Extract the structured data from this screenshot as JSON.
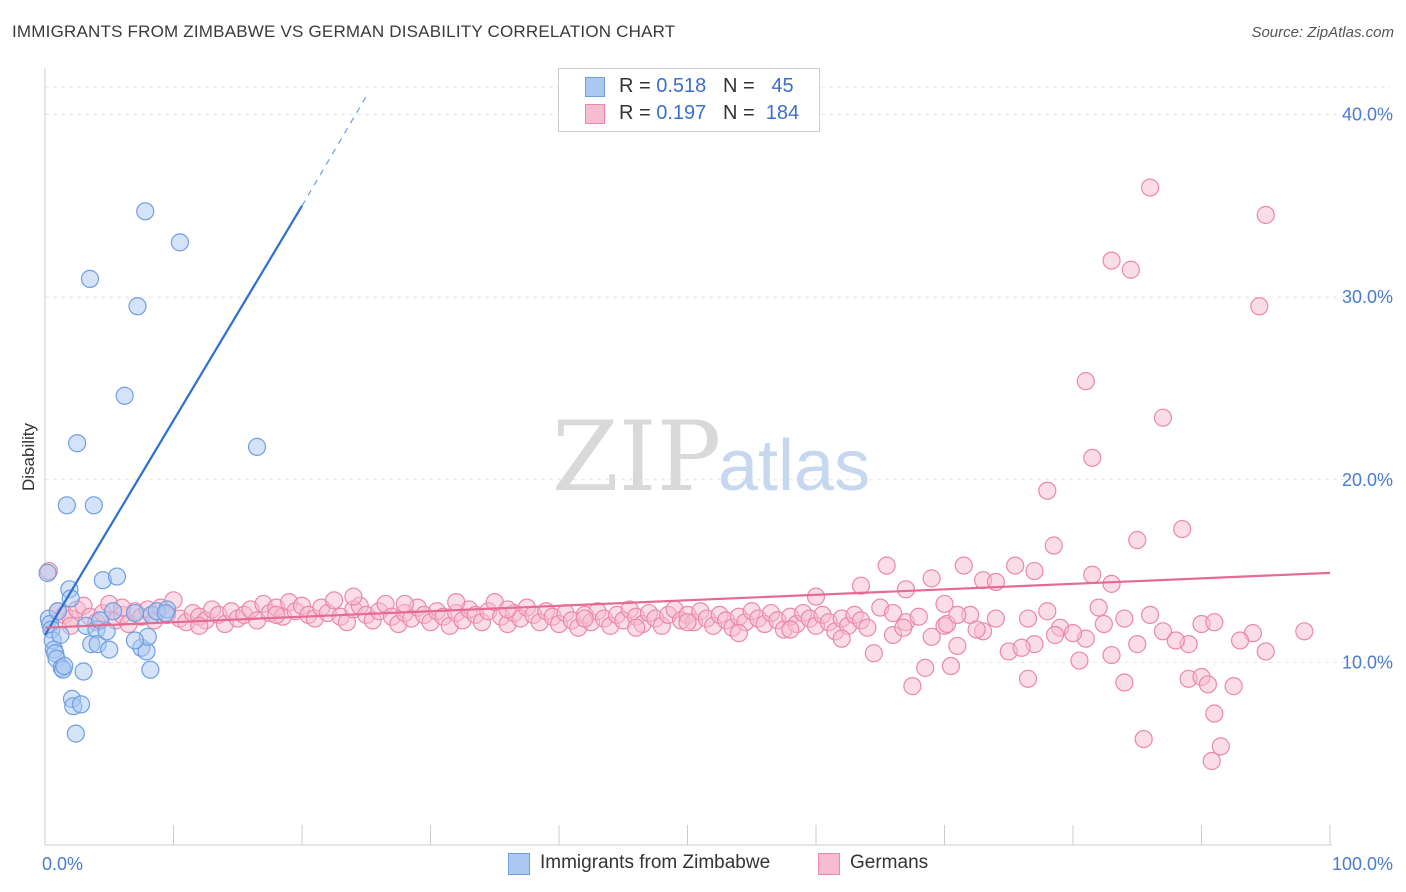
{
  "title": "IMMIGRANTS FROM ZIMBABWE VS GERMAN DISABILITY CORRELATION CHART",
  "source": "Source: ZipAtlas.com",
  "watermark": {
    "part1": "ZIP",
    "part2": "atlas"
  },
  "legend": {
    "rows": [
      {
        "r_label": "R =",
        "r_value": "0.518",
        "n_label": "N =",
        "n_value": "45"
      },
      {
        "r_label": "R =",
        "r_value": "0.197",
        "n_label": "N =",
        "n_value": "184"
      }
    ],
    "bottom": [
      "Immigrants from Zimbabwe",
      "Germans"
    ]
  },
  "colors": {
    "blue_fill": "#aac8f2",
    "blue_stroke": "#6f9fe0",
    "blue_line": "#2f6fd0",
    "pink_fill": "#f6bcd0",
    "pink_stroke": "#ec88a8",
    "pink_line": "#e56a94",
    "grid": "#e6e6e6",
    "tick_text": "#4a7bd0"
  },
  "chart_data": {
    "type": "scatter",
    "title": "IMMIGRANTS FROM ZIMBABWE VS GERMAN DISABILITY CORRELATION CHART",
    "xlabel": "",
    "ylabel": "Disability",
    "xlim": [
      0,
      100
    ],
    "ylim": [
      0,
      42
    ],
    "x_tick_labels": [
      "0.0%",
      "100.0%"
    ],
    "y_ticks": [
      10,
      20,
      30,
      40
    ],
    "y_tick_labels": [
      "10.0%",
      "20.0%",
      "30.0%",
      "40.0%"
    ],
    "grid": true,
    "legend_position": "top-center",
    "series": [
      {
        "name": "Immigrants from Zimbabwe",
        "R": 0.518,
        "N": 45,
        "trend": {
          "x0": 0,
          "y0": 11.5,
          "x1": 20,
          "y1": 35.0,
          "dashed_to_x": 25,
          "dashed_to_y": 41.0
        },
        "points": [
          [
            0.2,
            14.9
          ],
          [
            0.3,
            12.4
          ],
          [
            0.4,
            12.1
          ],
          [
            0.5,
            11.8
          ],
          [
            0.6,
            11.2
          ],
          [
            0.7,
            10.7
          ],
          [
            0.8,
            10.5
          ],
          [
            0.9,
            10.2
          ],
          [
            1.0,
            12.8
          ],
          [
            1.2,
            11.5
          ],
          [
            1.3,
            9.7
          ],
          [
            1.4,
            9.6
          ],
          [
            1.5,
            9.8
          ],
          [
            1.7,
            18.6
          ],
          [
            1.9,
            14.0
          ],
          [
            2.0,
            13.5
          ],
          [
            2.1,
            8.0
          ],
          [
            2.2,
            7.6
          ],
          [
            2.4,
            6.1
          ],
          [
            2.5,
            22.0
          ],
          [
            2.8,
            7.7
          ],
          [
            3.0,
            9.5
          ],
          [
            3.2,
            12.0
          ],
          [
            3.5,
            31.0
          ],
          [
            3.6,
            11.0
          ],
          [
            3.8,
            18.6
          ],
          [
            4.0,
            11.8
          ],
          [
            4.1,
            11.0
          ],
          [
            4.3,
            12.3
          ],
          [
            4.5,
            14.5
          ],
          [
            4.8,
            11.7
          ],
          [
            5.0,
            10.7
          ],
          [
            5.3,
            12.8
          ],
          [
            5.6,
            14.7
          ],
          [
            6.2,
            24.6
          ],
          [
            7.2,
            29.5
          ],
          [
            7.5,
            10.8
          ],
          [
            7.9,
            10.6
          ],
          [
            8.0,
            11.4
          ],
          [
            8.3,
            12.6
          ],
          [
            8.7,
            12.8
          ],
          [
            9.5,
            12.9
          ],
          [
            7.0,
            12.7
          ],
          [
            7.0,
            11.2
          ],
          [
            8.2,
            9.6
          ]
        ],
        "extra_points": [
          [
            7.8,
            34.7
          ],
          [
            10.5,
            33.0
          ],
          [
            16.5,
            21.8
          ],
          [
            9.4,
            12.7
          ]
        ]
      },
      {
        "name": "Germans",
        "R": 0.197,
        "N": 184,
        "trend": {
          "x0": 0,
          "y0": 11.9,
          "x1": 100,
          "y1": 14.9
        },
        "points": [
          [
            0.3,
            15.0
          ],
          [
            1.0,
            12.8
          ],
          [
            1.5,
            12.6
          ],
          [
            2.0,
            12.4
          ],
          [
            2.5,
            12.9
          ],
          [
            3.0,
            13.1
          ],
          [
            3.5,
            12.5
          ],
          [
            4.0,
            12.2
          ],
          [
            4.5,
            12.7
          ],
          [
            5.0,
            13.2
          ],
          [
            5.5,
            12.3
          ],
          [
            6.0,
            12.6
          ],
          [
            6.5,
            12.1
          ],
          [
            7.0,
            12.8
          ],
          [
            7.5,
            12.5
          ],
          [
            8.0,
            12.9
          ],
          [
            8.5,
            12.3
          ],
          [
            9.0,
            13.0
          ],
          [
            9.5,
            12.6
          ],
          [
            10.0,
            13.4
          ],
          [
            10.5,
            12.4
          ],
          [
            11.0,
            12.2
          ],
          [
            11.5,
            12.7
          ],
          [
            12.0,
            12.5
          ],
          [
            12.5,
            12.3
          ],
          [
            13.0,
            12.9
          ],
          [
            13.5,
            12.6
          ],
          [
            14.0,
            12.1
          ],
          [
            14.5,
            12.8
          ],
          [
            15.0,
            12.4
          ],
          [
            15.5,
            12.6
          ],
          [
            16.0,
            12.9
          ],
          [
            16.5,
            12.3
          ],
          [
            17.0,
            13.2
          ],
          [
            17.5,
            12.7
          ],
          [
            18.0,
            13.0
          ],
          [
            18.5,
            12.5
          ],
          [
            19.0,
            13.3
          ],
          [
            19.5,
            12.8
          ],
          [
            20.0,
            13.1
          ],
          [
            20.5,
            12.6
          ],
          [
            21.0,
            12.4
          ],
          [
            21.5,
            13.0
          ],
          [
            22.0,
            12.7
          ],
          [
            22.5,
            13.4
          ],
          [
            23.0,
            12.5
          ],
          [
            23.5,
            12.2
          ],
          [
            24.0,
            12.9
          ],
          [
            24.5,
            13.1
          ],
          [
            25.0,
            12.6
          ],
          [
            25.5,
            12.3
          ],
          [
            26.0,
            12.8
          ],
          [
            26.5,
            13.2
          ],
          [
            27.0,
            12.5
          ],
          [
            27.5,
            12.1
          ],
          [
            28.0,
            12.7
          ],
          [
            28.5,
            12.4
          ],
          [
            29.0,
            13.0
          ],
          [
            29.5,
            12.6
          ],
          [
            30.0,
            12.2
          ],
          [
            30.5,
            12.8
          ],
          [
            31.0,
            12.5
          ],
          [
            31.5,
            12.0
          ],
          [
            32.0,
            12.7
          ],
          [
            32.5,
            12.3
          ],
          [
            33.0,
            12.9
          ],
          [
            33.5,
            12.6
          ],
          [
            34.0,
            12.2
          ],
          [
            34.5,
            12.8
          ],
          [
            35.0,
            13.3
          ],
          [
            35.5,
            12.5
          ],
          [
            36.0,
            12.1
          ],
          [
            36.5,
            12.7
          ],
          [
            37.0,
            12.4
          ],
          [
            37.5,
            13.0
          ],
          [
            38.0,
            12.6
          ],
          [
            38.5,
            12.2
          ],
          [
            39.0,
            12.8
          ],
          [
            39.5,
            12.5
          ],
          [
            40.0,
            12.1
          ],
          [
            40.5,
            12.7
          ],
          [
            41.0,
            12.3
          ],
          [
            41.5,
            11.9
          ],
          [
            42.0,
            12.6
          ],
          [
            42.5,
            12.2
          ],
          [
            43.0,
            12.8
          ],
          [
            43.5,
            12.4
          ],
          [
            44.0,
            12.0
          ],
          [
            44.5,
            12.6
          ],
          [
            45.0,
            12.3
          ],
          [
            45.5,
            12.9
          ],
          [
            46.0,
            12.5
          ],
          [
            46.5,
            12.1
          ],
          [
            47.0,
            12.7
          ],
          [
            47.5,
            12.4
          ],
          [
            48.0,
            12.0
          ],
          [
            48.5,
            12.6
          ],
          [
            49.0,
            12.9
          ],
          [
            49.5,
            12.3
          ],
          [
            50.0,
            12.6
          ],
          [
            50.5,
            12.2
          ],
          [
            51.0,
            12.8
          ],
          [
            51.5,
            12.4
          ],
          [
            52.0,
            12.0
          ],
          [
            52.5,
            12.6
          ],
          [
            53.0,
            12.3
          ],
          [
            53.5,
            11.9
          ],
          [
            54.0,
            12.5
          ],
          [
            54.5,
            12.2
          ],
          [
            55.0,
            12.8
          ],
          [
            55.5,
            12.4
          ],
          [
            56.0,
            12.1
          ],
          [
            56.5,
            12.7
          ],
          [
            57.0,
            12.3
          ],
          [
            57.5,
            11.8
          ],
          [
            58.0,
            12.5
          ],
          [
            58.5,
            12.1
          ],
          [
            59.0,
            12.7
          ],
          [
            59.5,
            12.4
          ],
          [
            60.0,
            12.0
          ],
          [
            60.5,
            12.6
          ],
          [
            61.0,
            12.2
          ],
          [
            61.5,
            11.7
          ],
          [
            62.0,
            12.4
          ],
          [
            62.5,
            12.0
          ],
          [
            63.0,
            12.6
          ],
          [
            63.5,
            12.3
          ],
          [
            64.0,
            11.9
          ],
          [
            2.0,
            12.0
          ],
          [
            6.0,
            13.0
          ],
          [
            12.0,
            12.0
          ],
          [
            18.0,
            12.6
          ],
          [
            24.0,
            13.6
          ],
          [
            28.0,
            13.2
          ],
          [
            32.0,
            13.3
          ],
          [
            36.0,
            12.9
          ],
          [
            42.0,
            12.4
          ],
          [
            46.0,
            11.9
          ],
          [
            50.0,
            12.2
          ],
          [
            54.0,
            11.6
          ],
          [
            58.0,
            11.8
          ],
          [
            62.0,
            11.3
          ],
          [
            66.0,
            11.5
          ],
          [
            70.0,
            12.0
          ],
          [
            74.0,
            12.4
          ],
          [
            78.0,
            12.8
          ],
          [
            82.0,
            13.0
          ],
          [
            86.0,
            12.6
          ],
          [
            90.0,
            12.1
          ],
          [
            94.0,
            11.6
          ],
          [
            98.0,
            11.7
          ],
          [
            65.0,
            13.0
          ],
          [
            67.0,
            12.2
          ],
          [
            69.0,
            11.4
          ],
          [
            71.0,
            10.9
          ],
          [
            73.0,
            11.7
          ],
          [
            75.0,
            10.6
          ],
          [
            77.0,
            11.0
          ],
          [
            79.0,
            11.9
          ],
          [
            81.0,
            11.3
          ],
          [
            83.0,
            10.4
          ],
          [
            85.0,
            11.0
          ],
          [
            87.0,
            11.7
          ],
          [
            89.0,
            11.0
          ],
          [
            91.0,
            12.2
          ],
          [
            93.0,
            11.2
          ],
          [
            95.0,
            10.6
          ],
          [
            66.0,
            12.7
          ],
          [
            68.0,
            12.5
          ],
          [
            72.0,
            12.6
          ],
          [
            76.0,
            10.8
          ],
          [
            80.0,
            11.6
          ],
          [
            84.0,
            12.4
          ],
          [
            88.0,
            11.2
          ],
          [
            64.5,
            10.5
          ],
          [
            66.8,
            11.9
          ],
          [
            70.2,
            12.1
          ],
          [
            72.5,
            11.8
          ],
          [
            76.5,
            12.4
          ],
          [
            78.6,
            11.5
          ],
          [
            82.4,
            12.1
          ]
        ],
        "extra_points": [
          [
            86.0,
            36.0
          ],
          [
            95.0,
            34.5
          ],
          [
            83.0,
            32.0
          ],
          [
            84.5,
            31.5
          ],
          [
            94.5,
            29.5
          ],
          [
            81.0,
            25.4
          ],
          [
            87.0,
            23.4
          ],
          [
            81.5,
            21.2
          ],
          [
            78.0,
            19.4
          ],
          [
            88.5,
            17.3
          ],
          [
            85.0,
            16.7
          ],
          [
            78.5,
            16.4
          ],
          [
            71.5,
            15.3
          ],
          [
            75.5,
            15.3
          ],
          [
            77.0,
            15.0
          ],
          [
            81.5,
            14.8
          ],
          [
            69.0,
            14.6
          ],
          [
            73.0,
            14.5
          ],
          [
            74.0,
            14.4
          ],
          [
            83.0,
            14.3
          ],
          [
            65.5,
            15.3
          ],
          [
            67.0,
            14.0
          ],
          [
            63.5,
            14.2
          ],
          [
            60.0,
            13.6
          ],
          [
            70.0,
            13.2
          ],
          [
            71.0,
            12.6
          ],
          [
            68.5,
            9.7
          ],
          [
            70.5,
            9.8
          ],
          [
            67.5,
            8.7
          ],
          [
            76.5,
            9.1
          ],
          [
            80.5,
            10.1
          ],
          [
            84.0,
            8.9
          ],
          [
            89.0,
            9.1
          ],
          [
            90.0,
            9.2
          ],
          [
            85.5,
            5.8
          ],
          [
            91.0,
            7.2
          ],
          [
            91.5,
            5.4
          ],
          [
            90.8,
            4.6
          ],
          [
            90.5,
            8.8
          ],
          [
            92.5,
            8.7
          ]
        ]
      }
    ]
  }
}
